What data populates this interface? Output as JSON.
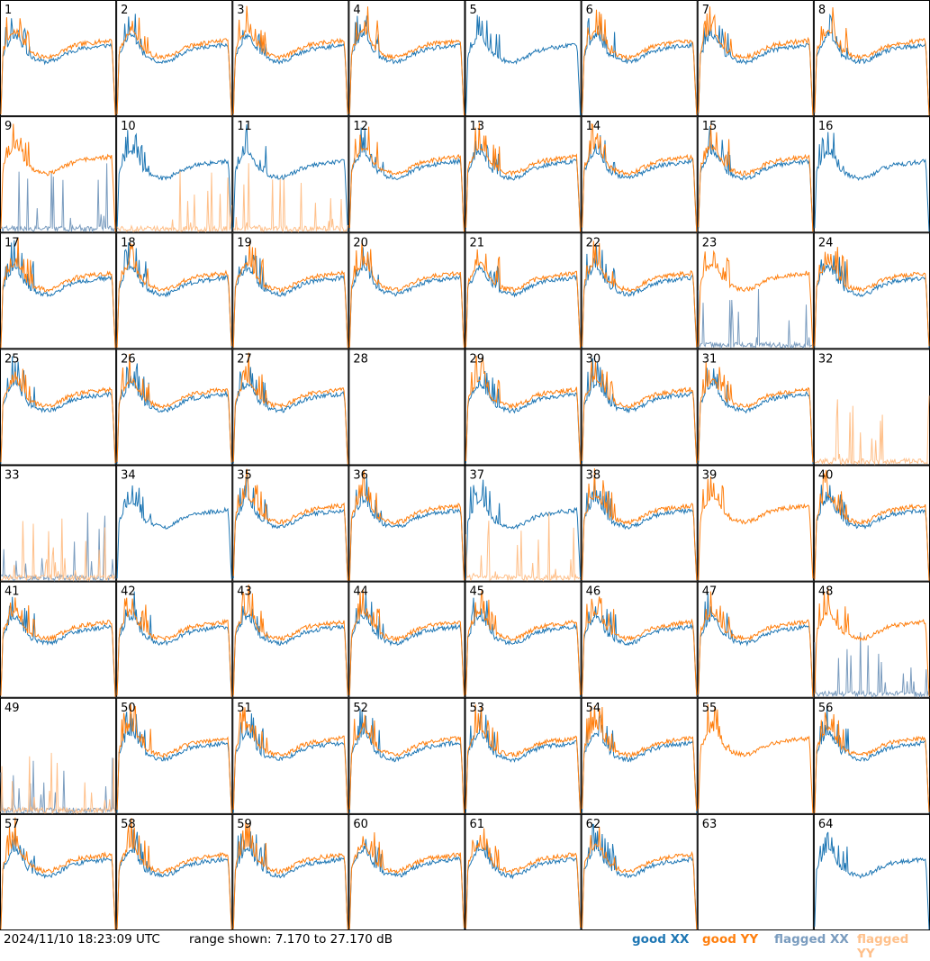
{
  "footer": {
    "timestamp": "2024/11/10 18:23:09 UTC",
    "range_text": "range shown: 7.170 to 27.170 dB"
  },
  "legend": {
    "good_xx": "good XX",
    "good_yy": "good YY",
    "flagged_xx": "flagged XX",
    "flagged_yy": "flagged YY"
  },
  "colors": {
    "good_xx": "#1f77b4",
    "good_yy": "#ff7f0e",
    "flagged_xx": "#7a9cbf",
    "flagged_yy": "#ffc08a",
    "border": "#000000"
  },
  "chart_data": {
    "type": "line",
    "grid": "8x8 small multiples",
    "ylim_db": [
      7.17,
      27.17
    ],
    "x_axis": "frequency channel (unlabeled)",
    "panel_labels": [
      "1",
      "2",
      "3",
      "4",
      "5",
      "6",
      "7",
      "8",
      "9",
      "10",
      "11",
      "12",
      "13",
      "14",
      "15",
      "16",
      "17",
      "18",
      "19",
      "20",
      "21",
      "22",
      "23",
      "24",
      "25",
      "26",
      "27",
      "28",
      "29",
      "30",
      "31",
      "32",
      "33",
      "34",
      "35",
      "36",
      "37",
      "38",
      "39",
      "40",
      "41",
      "42",
      "43",
      "44",
      "45",
      "46",
      "47",
      "48",
      "49",
      "50",
      "51",
      "52",
      "53",
      "54",
      "55",
      "56",
      "57",
      "58",
      "59",
      "60",
      "61",
      "62",
      "63",
      "64"
    ],
    "panels": [
      {
        "xx": "g",
        "yy": "g"
      },
      {
        "xx": "g",
        "yy": "g"
      },
      {
        "xx": "g",
        "yy": "g"
      },
      {
        "xx": "g",
        "yy": "g"
      },
      {
        "xx": "g",
        "yy": "n"
      },
      {
        "xx": "g",
        "yy": "g"
      },
      {
        "xx": "g",
        "yy": "g"
      },
      {
        "xx": "g",
        "yy": "g"
      },
      {
        "xx": "f",
        "yy": "g"
      },
      {
        "xx": "g",
        "yy": "f"
      },
      {
        "xx": "g",
        "yy": "f"
      },
      {
        "xx": "g",
        "yy": "g"
      },
      {
        "xx": "g",
        "yy": "g"
      },
      {
        "xx": "g",
        "yy": "g"
      },
      {
        "xx": "g",
        "yy": "g"
      },
      {
        "xx": "g",
        "yy": "n"
      },
      {
        "xx": "g",
        "yy": "g"
      },
      {
        "xx": "g",
        "yy": "g"
      },
      {
        "xx": "g",
        "yy": "g"
      },
      {
        "xx": "g",
        "yy": "g"
      },
      {
        "xx": "g",
        "yy": "g"
      },
      {
        "xx": "g",
        "yy": "g"
      },
      {
        "xx": "f",
        "yy": "g"
      },
      {
        "xx": "g",
        "yy": "g"
      },
      {
        "xx": "g",
        "yy": "g"
      },
      {
        "xx": "g",
        "yy": "g"
      },
      {
        "xx": "g",
        "yy": "g"
      },
      {
        "xx": "n",
        "yy": "n"
      },
      {
        "xx": "g",
        "yy": "g"
      },
      {
        "xx": "g",
        "yy": "g"
      },
      {
        "xx": "g",
        "yy": "g"
      },
      {
        "xx": "n",
        "yy": "f"
      },
      {
        "xx": "f",
        "yy": "f"
      },
      {
        "xx": "g",
        "yy": "n"
      },
      {
        "xx": "g",
        "yy": "g"
      },
      {
        "xx": "g",
        "yy": "g"
      },
      {
        "xx": "g",
        "yy": "f"
      },
      {
        "xx": "g",
        "yy": "g"
      },
      {
        "xx": "n",
        "yy": "g"
      },
      {
        "xx": "g",
        "yy": "g"
      },
      {
        "xx": "g",
        "yy": "g"
      },
      {
        "xx": "g",
        "yy": "g"
      },
      {
        "xx": "g",
        "yy": "g"
      },
      {
        "xx": "g",
        "yy": "g"
      },
      {
        "xx": "g",
        "yy": "g"
      },
      {
        "xx": "g",
        "yy": "g"
      },
      {
        "xx": "g",
        "yy": "g"
      },
      {
        "xx": "f",
        "yy": "g"
      },
      {
        "xx": "f",
        "yy": "f"
      },
      {
        "xx": "g",
        "yy": "g"
      },
      {
        "xx": "g",
        "yy": "g"
      },
      {
        "xx": "g",
        "yy": "g"
      },
      {
        "xx": "g",
        "yy": "g"
      },
      {
        "xx": "g",
        "yy": "g"
      },
      {
        "xx": "n",
        "yy": "g"
      },
      {
        "xx": "g",
        "yy": "g"
      },
      {
        "xx": "g",
        "yy": "g"
      },
      {
        "xx": "g",
        "yy": "g"
      },
      {
        "xx": "g",
        "yy": "g"
      },
      {
        "xx": "g",
        "yy": "g"
      },
      {
        "xx": "g",
        "yy": "g"
      },
      {
        "xx": "g",
        "yy": "g"
      },
      {
        "xx": "n",
        "yy": "n"
      },
      {
        "xx": "g",
        "yy": "n"
      }
    ]
  }
}
